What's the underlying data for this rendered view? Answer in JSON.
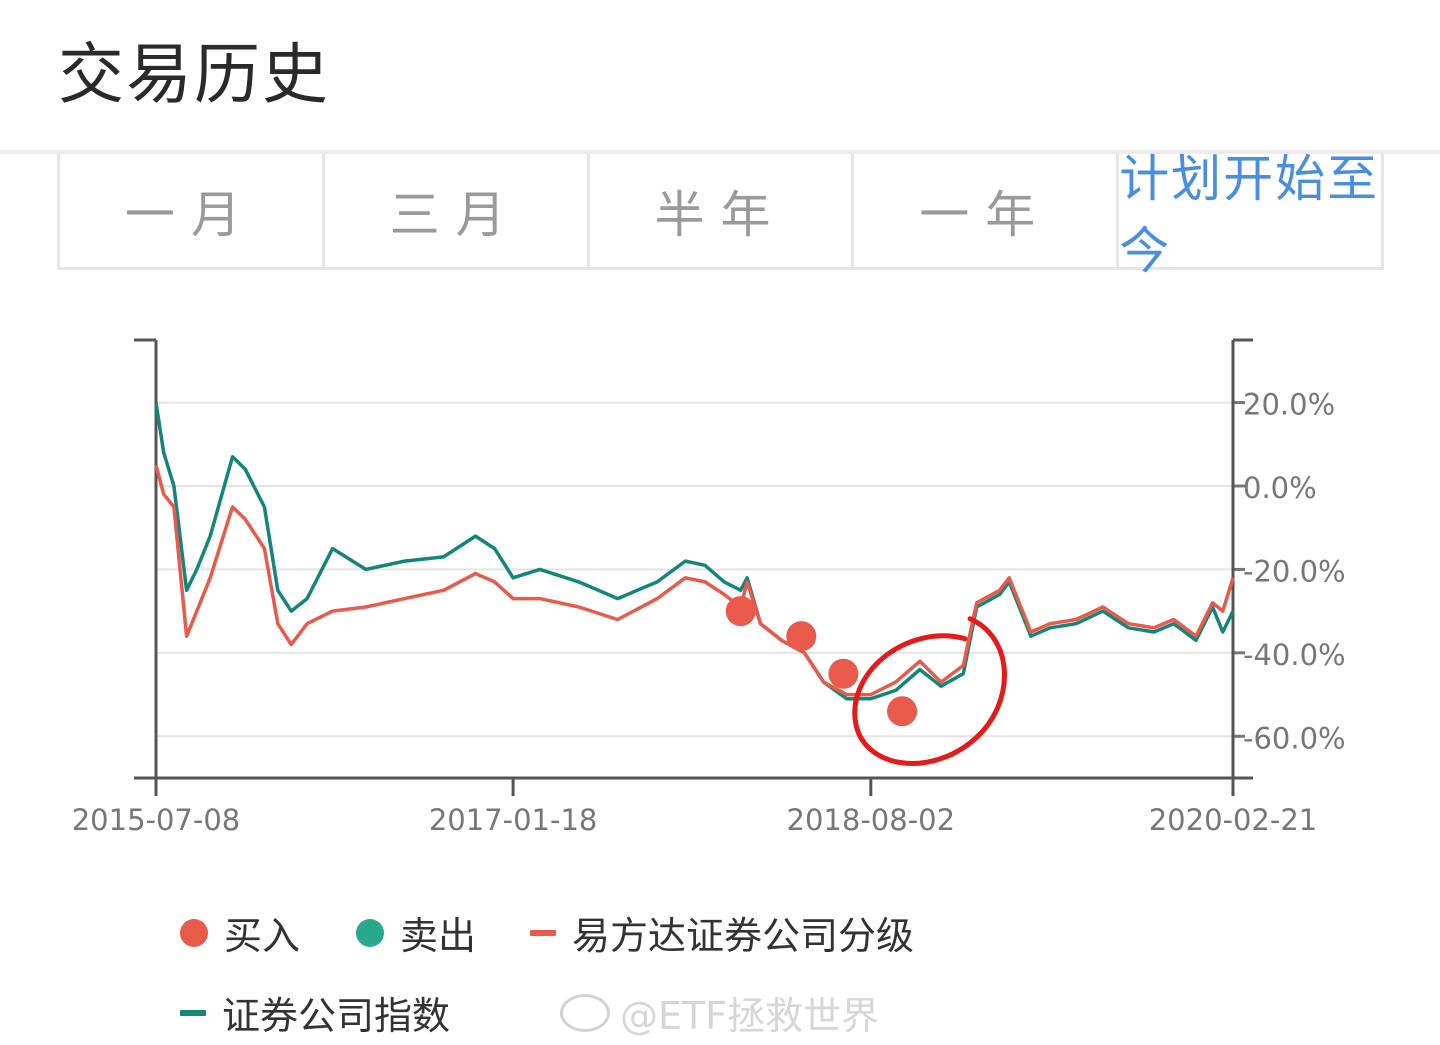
{
  "header": {
    "title": "交易历史"
  },
  "tabs": [
    {
      "label": "一月",
      "active": false
    },
    {
      "label": "三月",
      "active": false
    },
    {
      "label": "半年",
      "active": false
    },
    {
      "label": "一年",
      "active": false
    },
    {
      "label": "计划开始至今",
      "active": true
    }
  ],
  "colors": {
    "buy": "#e85a4a",
    "sell": "#2aa88e",
    "fund_line": "#e85a4a",
    "index_line": "#13857a",
    "active_tab": "#4a8ee0",
    "annotation": "#e61a1a"
  },
  "chart_data": {
    "type": "line",
    "x_ticks": [
      "2015-07-08",
      "2017-01-18",
      "2018-08-02",
      "2020-02-21"
    ],
    "y_ticks": [
      "20.0%",
      "0.0%",
      "-20.0%",
      "-40.0%",
      "-60.0%"
    ],
    "ylim": [
      -70,
      35
    ],
    "y_axis_position": "right",
    "grid": true,
    "legend_position": "bottom",
    "series": [
      {
        "name": "易方达证券公司分级",
        "x": [
          "2015-07-08",
          "2015-07-20",
          "2015-08-05",
          "2015-08-25",
          "2015-09-10",
          "2015-10-01",
          "2015-11-05",
          "2015-11-25",
          "2015-12-25",
          "2016-01-15",
          "2016-02-05",
          "2016-03-01",
          "2016-04-10",
          "2016-06-01",
          "2016-08-01",
          "2016-10-01",
          "2016-11-20",
          "2016-12-20",
          "2017-01-18",
          "2017-03-01",
          "2017-05-01",
          "2017-07-01",
          "2017-09-01",
          "2017-10-15",
          "2017-11-15",
          "2017-12-15",
          "2018-01-10",
          "2018-01-20",
          "2018-02-10",
          "2018-03-15",
          "2018-04-20",
          "2018-05-20",
          "2018-06-25",
          "2018-08-02",
          "2018-09-10",
          "2018-10-18",
          "2018-11-20",
          "2018-12-25",
          "2019-01-15",
          "2019-02-20",
          "2019-03-07",
          "2019-04-10",
          "2019-05-10",
          "2019-06-20",
          "2019-08-01",
          "2019-09-10",
          "2019-10-20",
          "2019-11-20",
          "2019-12-25",
          "2020-01-20",
          "2020-02-05",
          "2020-02-21"
        ],
        "values": [
          5,
          -2,
          -5,
          -36,
          -30,
          -22,
          -5,
          -8,
          -15,
          -33,
          -38,
          -33,
          -30,
          -29,
          -27,
          -25,
          -21,
          -23,
          -27,
          -27,
          -29,
          -32,
          -27,
          -22,
          -23,
          -26,
          -29,
          -23,
          -33,
          -37,
          -40,
          -47,
          -50,
          -50,
          -47,
          -42,
          -47,
          -43,
          -28,
          -25,
          -22,
          -35,
          -33,
          -32,
          -29,
          -33,
          -34,
          -32,
          -36,
          -28,
          -30,
          -22
        ]
      },
      {
        "name": "证券公司指数",
        "x": [
          "2015-07-08",
          "2015-07-20",
          "2015-08-05",
          "2015-08-25",
          "2015-09-10",
          "2015-10-01",
          "2015-11-05",
          "2015-11-25",
          "2015-12-25",
          "2016-01-15",
          "2016-02-05",
          "2016-03-01",
          "2016-04-10",
          "2016-06-01",
          "2016-08-01",
          "2016-10-01",
          "2016-11-20",
          "2016-12-20",
          "2017-01-18",
          "2017-03-01",
          "2017-05-01",
          "2017-07-01",
          "2017-09-01",
          "2017-10-15",
          "2017-11-15",
          "2017-12-15",
          "2018-01-10",
          "2018-01-20",
          "2018-02-10",
          "2018-03-15",
          "2018-04-20",
          "2018-05-20",
          "2018-06-25",
          "2018-08-02",
          "2018-09-10",
          "2018-10-18",
          "2018-11-20",
          "2018-12-25",
          "2019-01-15",
          "2019-02-20",
          "2019-03-07",
          "2019-04-10",
          "2019-05-10",
          "2019-06-20",
          "2019-08-01",
          "2019-09-10",
          "2019-10-20",
          "2019-11-20",
          "2019-12-25",
          "2020-01-20",
          "2020-02-05",
          "2020-02-21"
        ],
        "values": [
          20,
          8,
          0,
          -25,
          -20,
          -12,
          7,
          4,
          -5,
          -25,
          -30,
          -27,
          -15,
          -20,
          -18,
          -17,
          -12,
          -15,
          -22,
          -20,
          -23,
          -27,
          -23,
          -18,
          -19,
          -23,
          -25,
          -22,
          -33,
          -37,
          -40,
          -47,
          -51,
          -51,
          -49,
          -44,
          -48,
          -45,
          -29,
          -26,
          -23,
          -36,
          -34,
          -33,
          -30,
          -34,
          -35,
          -33,
          -37,
          -29,
          -35,
          -30
        ]
      }
    ],
    "markers": [
      {
        "type": "买入",
        "date": "2018-01-10",
        "value": -30
      },
      {
        "type": "买入",
        "date": "2018-04-15",
        "value": -36
      },
      {
        "type": "买入",
        "date": "2018-06-20",
        "value": -45
      },
      {
        "type": "买入",
        "date": "2018-09-20",
        "value": -54
      }
    ]
  },
  "legend": {
    "buy_label": "买入",
    "sell_label": "卖出",
    "fund_label": "易方达证券公司分级",
    "index_label": "证券公司指数"
  },
  "watermark": {
    "text": "@ETF拯救世界"
  }
}
